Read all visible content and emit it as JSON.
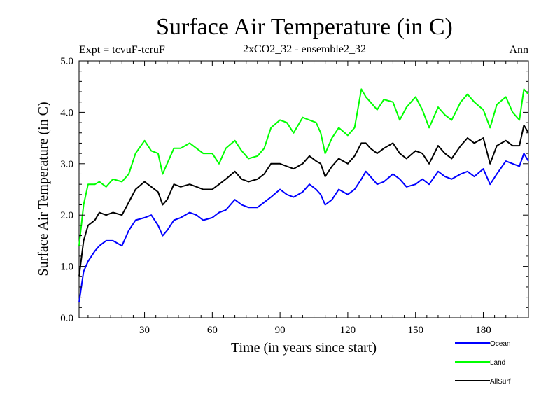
{
  "header": {
    "title": "Surface Air Temperature (in C)",
    "subtitle": "2xCO2_32 - ensemble2_32",
    "left_note": "Expt = tcvuF-tcruF",
    "right_note": "Ann"
  },
  "chart_data": {
    "type": "line",
    "title": "Surface Air Temperature (in C)",
    "xlabel": "Time (in years since start)",
    "ylabel": "Surface Air Temperature (in C)",
    "xlim": [
      1,
      200
    ],
    "ylim": [
      0,
      5
    ],
    "x_ticks": [
      30,
      60,
      90,
      120,
      150,
      180
    ],
    "x_tick_labels": [
      "30",
      "60",
      "90",
      "120",
      "150",
      "180"
    ],
    "y_ticks": [
      0,
      1,
      2,
      3,
      4,
      5
    ],
    "y_tick_labels": [
      "0.0",
      "1.0",
      "2.0",
      "3.0",
      "4.0",
      "5.0"
    ],
    "grid": false,
    "legend_position": "bottom-right",
    "series": [
      {
        "name": "Ocean",
        "color": "#0000ff",
        "x": [
          1,
          3,
          5,
          8,
          10,
          13,
          16,
          20,
          23,
          26,
          30,
          33,
          36,
          38,
          40,
          43,
          46,
          50,
          53,
          56,
          60,
          63,
          66,
          70,
          73,
          76,
          80,
          83,
          86,
          90,
          93,
          96,
          100,
          103,
          106,
          108,
          110,
          113,
          116,
          120,
          123,
          126,
          128,
          130,
          133,
          136,
          140,
          143,
          146,
          150,
          153,
          156,
          160,
          163,
          166,
          170,
          173,
          176,
          180,
          183,
          186,
          190,
          193,
          196,
          198,
          200
        ],
        "values": [
          0.3,
          0.9,
          1.1,
          1.3,
          1.4,
          1.5,
          1.5,
          1.4,
          1.7,
          1.9,
          1.95,
          2.0,
          1.8,
          1.6,
          1.7,
          1.9,
          1.95,
          2.05,
          2.0,
          1.9,
          1.95,
          2.05,
          2.1,
          2.3,
          2.2,
          2.15,
          2.15,
          2.25,
          2.35,
          2.5,
          2.4,
          2.35,
          2.45,
          2.6,
          2.5,
          2.4,
          2.2,
          2.3,
          2.5,
          2.4,
          2.5,
          2.7,
          2.85,
          2.75,
          2.6,
          2.65,
          2.8,
          2.7,
          2.55,
          2.6,
          2.7,
          2.6,
          2.85,
          2.75,
          2.7,
          2.8,
          2.85,
          2.75,
          2.9,
          2.6,
          2.8,
          3.05,
          3.0,
          2.95,
          3.2,
          3.05
        ]
      },
      {
        "name": "Land",
        "color": "#00ff00",
        "x": [
          1,
          3,
          5,
          8,
          10,
          13,
          16,
          20,
          23,
          26,
          30,
          33,
          36,
          38,
          40,
          43,
          46,
          50,
          53,
          56,
          60,
          63,
          66,
          70,
          73,
          76,
          80,
          83,
          86,
          90,
          93,
          96,
          100,
          103,
          106,
          108,
          110,
          113,
          116,
          120,
          123,
          126,
          128,
          130,
          133,
          136,
          140,
          143,
          146,
          150,
          153,
          156,
          160,
          163,
          166,
          170,
          173,
          176,
          180,
          183,
          186,
          190,
          193,
          196,
          198,
          200
        ],
        "values": [
          1.4,
          2.2,
          2.6,
          2.6,
          2.65,
          2.55,
          2.7,
          2.65,
          2.8,
          3.2,
          3.45,
          3.25,
          3.2,
          2.8,
          3.0,
          3.3,
          3.3,
          3.4,
          3.3,
          3.2,
          3.2,
          3.0,
          3.3,
          3.45,
          3.25,
          3.1,
          3.15,
          3.3,
          3.7,
          3.85,
          3.8,
          3.6,
          3.9,
          3.85,
          3.8,
          3.6,
          3.2,
          3.5,
          3.7,
          3.55,
          3.7,
          4.45,
          4.3,
          4.2,
          4.05,
          4.25,
          4.2,
          3.85,
          4.1,
          4.3,
          4.05,
          3.7,
          4.1,
          3.95,
          3.85,
          4.2,
          4.35,
          4.2,
          4.05,
          3.7,
          4.15,
          4.3,
          4.0,
          3.85,
          4.45,
          4.35
        ]
      },
      {
        "name": "AllSurf",
        "color": "#000000",
        "x": [
          1,
          3,
          5,
          8,
          10,
          13,
          16,
          20,
          23,
          26,
          30,
          33,
          36,
          38,
          40,
          43,
          46,
          50,
          53,
          56,
          60,
          63,
          66,
          70,
          73,
          76,
          80,
          83,
          86,
          90,
          93,
          96,
          100,
          103,
          106,
          108,
          110,
          113,
          116,
          120,
          123,
          126,
          128,
          130,
          133,
          136,
          140,
          143,
          146,
          150,
          153,
          156,
          160,
          163,
          166,
          170,
          173,
          176,
          180,
          183,
          186,
          190,
          193,
          196,
          198,
          200
        ],
        "values": [
          0.8,
          1.5,
          1.8,
          1.9,
          2.05,
          2.0,
          2.05,
          2.0,
          2.25,
          2.5,
          2.65,
          2.55,
          2.45,
          2.2,
          2.3,
          2.6,
          2.55,
          2.6,
          2.55,
          2.5,
          2.5,
          2.6,
          2.7,
          2.85,
          2.7,
          2.65,
          2.7,
          2.8,
          3.0,
          3.0,
          2.95,
          2.9,
          3.0,
          3.15,
          3.05,
          3.0,
          2.75,
          2.95,
          3.1,
          3.0,
          3.15,
          3.4,
          3.4,
          3.3,
          3.2,
          3.3,
          3.4,
          3.2,
          3.1,
          3.25,
          3.2,
          3.0,
          3.35,
          3.2,
          3.1,
          3.35,
          3.5,
          3.4,
          3.5,
          3.0,
          3.35,
          3.45,
          3.35,
          3.35,
          3.75,
          3.6
        ]
      }
    ]
  }
}
